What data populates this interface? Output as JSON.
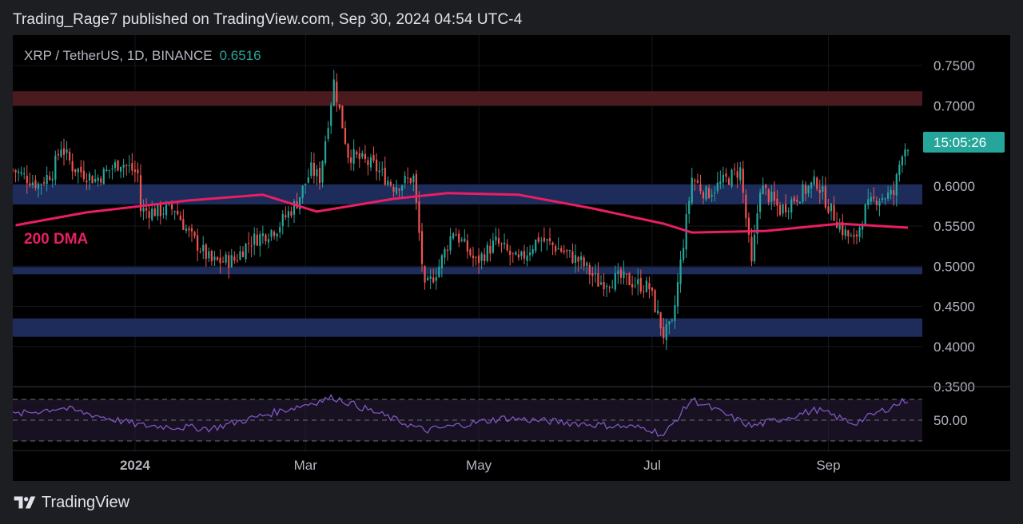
{
  "header": {
    "published_line": "Trading_Rage7 published on TradingView.com, Sep 30, 2024 04:54 UTC-4"
  },
  "footer": {
    "brand": "TradingView"
  },
  "chart_data": [
    {
      "type": "candlestick",
      "symbol": "XRP / TetherUS",
      "interval": "1D",
      "exchange": "BINANCE",
      "last_price": "0.6516",
      "countdown": "15:05:26",
      "ylim": [
        0.35,
        0.76
      ],
      "y_tick_labels": [
        "0.7500",
        "0.7000",
        "0.6000",
        "0.5500",
        "0.5000",
        "0.4500",
        "0.4000",
        "0.3500"
      ],
      "x_tick_labels": [
        "2024",
        "Mar",
        "May",
        "Jul",
        "Sep"
      ],
      "grid": true,
      "colors": {
        "up": "#26a69a",
        "down": "#ef5350",
        "ma": "#e91e63",
        "zone": "#1e2c5c",
        "resistance": "#4a1a1e",
        "price_tag": "#26a69a"
      },
      "zones": [
        {
          "kind": "resistance",
          "from": 0.7,
          "to": 0.718
        },
        {
          "kind": "support",
          "from": 0.577,
          "to": 0.602
        },
        {
          "kind": "support",
          "from": 0.49,
          "to": 0.499
        },
        {
          "kind": "support",
          "from": 0.412,
          "to": 0.435
        }
      ],
      "annotation": "200 DMA",
      "ma_series": {
        "name": "200 DMA",
        "points": [
          [
            "2023-11-20",
            0.551
          ],
          [
            "2023-12-15",
            0.567
          ],
          [
            "2024-01-20",
            0.582
          ],
          [
            "2024-02-15",
            0.589
          ],
          [
            "2024-03-05",
            0.568
          ],
          [
            "2024-04-01",
            0.584
          ],
          [
            "2024-04-20",
            0.591
          ],
          [
            "2024-05-15",
            0.589
          ],
          [
            "2024-06-10",
            0.572
          ],
          [
            "2024-07-05",
            0.553
          ],
          [
            "2024-07-15",
            0.542
          ],
          [
            "2024-08-10",
            0.544
          ],
          [
            "2024-09-05",
            0.553
          ],
          [
            "2024-09-29",
            0.548
          ]
        ]
      },
      "price_path": [
        [
          "2023-11-19",
          0.62
        ],
        [
          "2023-11-28",
          0.602
        ],
        [
          "2023-12-03",
          0.618
        ],
        [
          "2023-12-06",
          0.65
        ],
        [
          "2023-12-10",
          0.624
        ],
        [
          "2023-12-18",
          0.608
        ],
        [
          "2023-12-27",
          0.63
        ],
        [
          "2024-01-02",
          0.615
        ],
        [
          "2024-01-03",
          0.57
        ],
        [
          "2024-01-09",
          0.568
        ],
        [
          "2024-01-15",
          0.572
        ],
        [
          "2024-01-20",
          0.54
        ],
        [
          "2024-01-28",
          0.505
        ],
        [
          "2024-02-05",
          0.508
        ],
        [
          "2024-02-10",
          0.53
        ],
        [
          "2024-02-20",
          0.548
        ],
        [
          "2024-02-27",
          0.58
        ],
        [
          "2024-03-03",
          0.62
        ],
        [
          "2024-03-06",
          0.61
        ],
        [
          "2024-03-11",
          0.73
        ],
        [
          "2024-03-16",
          0.64
        ],
        [
          "2024-03-25",
          0.625
        ],
        [
          "2024-04-01",
          0.6
        ],
        [
          "2024-04-08",
          0.61
        ],
        [
          "2024-04-12",
          0.47
        ],
        [
          "2024-04-17",
          0.5
        ],
        [
          "2024-04-22",
          0.545
        ],
        [
          "2024-04-30",
          0.505
        ],
        [
          "2024-05-07",
          0.53
        ],
        [
          "2024-05-15",
          0.505
        ],
        [
          "2024-05-22",
          0.535
        ],
        [
          "2024-05-30",
          0.52
        ],
        [
          "2024-06-06",
          0.505
        ],
        [
          "2024-06-12",
          0.48
        ],
        [
          "2024-06-20",
          0.485
        ],
        [
          "2024-06-30",
          0.473
        ],
        [
          "2024-07-05",
          0.415
        ],
        [
          "2024-07-08",
          0.425
        ],
        [
          "2024-07-12",
          0.53
        ],
        [
          "2024-07-15",
          0.61
        ],
        [
          "2024-07-20",
          0.59
        ],
        [
          "2024-07-26",
          0.605
        ],
        [
          "2024-08-01",
          0.62
        ],
        [
          "2024-08-05",
          0.5
        ],
        [
          "2024-08-08",
          0.6
        ],
        [
          "2024-08-15",
          0.57
        ],
        [
          "2024-08-22",
          0.59
        ],
        [
          "2024-08-28",
          0.605
        ],
        [
          "2024-09-01",
          0.575
        ],
        [
          "2024-09-06",
          0.545
        ],
        [
          "2024-09-10",
          0.53
        ],
        [
          "2024-09-14",
          0.57
        ],
        [
          "2024-09-18",
          0.585
        ],
        [
          "2024-09-24",
          0.59
        ],
        [
          "2024-09-27",
          0.645
        ],
        [
          "2024-09-29",
          0.6516
        ]
      ]
    },
    {
      "type": "line",
      "indicator": "RSI",
      "y_tick_labels": [
        "50.00"
      ],
      "series": [
        {
          "values_by_date": [
            [
              "2023-11-19",
              55
            ],
            [
              "2023-12-06",
              62
            ],
            [
              "2024-01-03",
              45
            ],
            [
              "2024-01-28",
              42
            ],
            [
              "2024-03-11",
              72
            ],
            [
              "2024-04-12",
              40
            ],
            [
              "2024-05-10",
              52
            ],
            [
              "2024-06-30",
              42
            ],
            [
              "2024-07-05",
              35
            ],
            [
              "2024-07-15",
              70
            ],
            [
              "2024-08-05",
              44
            ],
            [
              "2024-08-28",
              60
            ],
            [
              "2024-09-10",
              47
            ],
            [
              "2024-09-29",
              70
            ]
          ]
        }
      ],
      "colors": {
        "line": "#7e57c2",
        "band": "#2a1f3d"
      }
    }
  ]
}
